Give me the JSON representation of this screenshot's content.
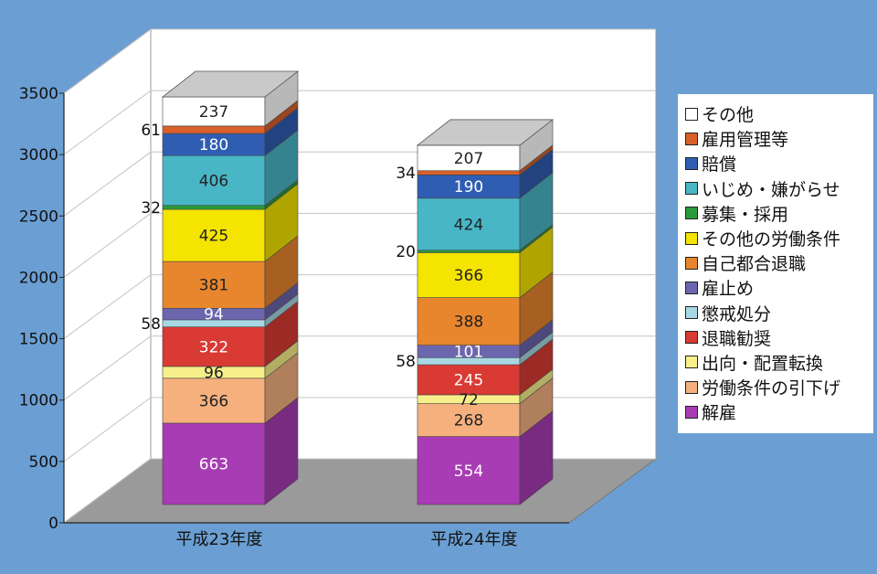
{
  "chart_data": {
    "type": "bar",
    "stacked": true,
    "three_d": true,
    "categories": [
      "平成23年度",
      "平成24年度"
    ],
    "ylim": [
      0,
      3500
    ],
    "yticks": [
      0,
      500,
      1000,
      1500,
      2000,
      2500,
      3000,
      3500
    ],
    "grid": true,
    "legend_position": "right",
    "series": [
      {
        "name": "解雇",
        "values": [
          663,
          554
        ],
        "color": "#a83cb4"
      },
      {
        "name": "労働条件の引下げ",
        "values": [
          366,
          268
        ],
        "color": "#f5b07e"
      },
      {
        "name": "出向・配置転換",
        "values": [
          96,
          72
        ],
        "color": "#f7f08a"
      },
      {
        "name": "退職勧奨",
        "values": [
          322,
          245
        ],
        "color": "#d93a34"
      },
      {
        "name": "懲戒処分",
        "values": [
          58,
          58
        ],
        "color": "#a8d8e4"
      },
      {
        "name": "雇止め",
        "values": [
          94,
          101
        ],
        "color": "#6c66ae"
      },
      {
        "name": "自己都合退職",
        "values": [
          381,
          388
        ],
        "color": "#e8862e"
      },
      {
        "name": "その他の労働条件",
        "values": [
          425,
          366
        ],
        "color": "#f4e400"
      },
      {
        "name": "募集・採用",
        "values": [
          32,
          20
        ],
        "color": "#2a9a3a"
      },
      {
        "name": "いじめ・嫌がらせ",
        "values": [
          406,
          424
        ],
        "color": "#49b6c6"
      },
      {
        "name": "賠償",
        "values": [
          180,
          190
        ],
        "color": "#2f5db2"
      },
      {
        "name": "雇用管理等",
        "values": [
          61,
          34
        ],
        "color": "#d9602a"
      },
      {
        "name": "その他",
        "values": [
          237,
          207
        ],
        "color": "#ffffff"
      }
    ]
  }
}
